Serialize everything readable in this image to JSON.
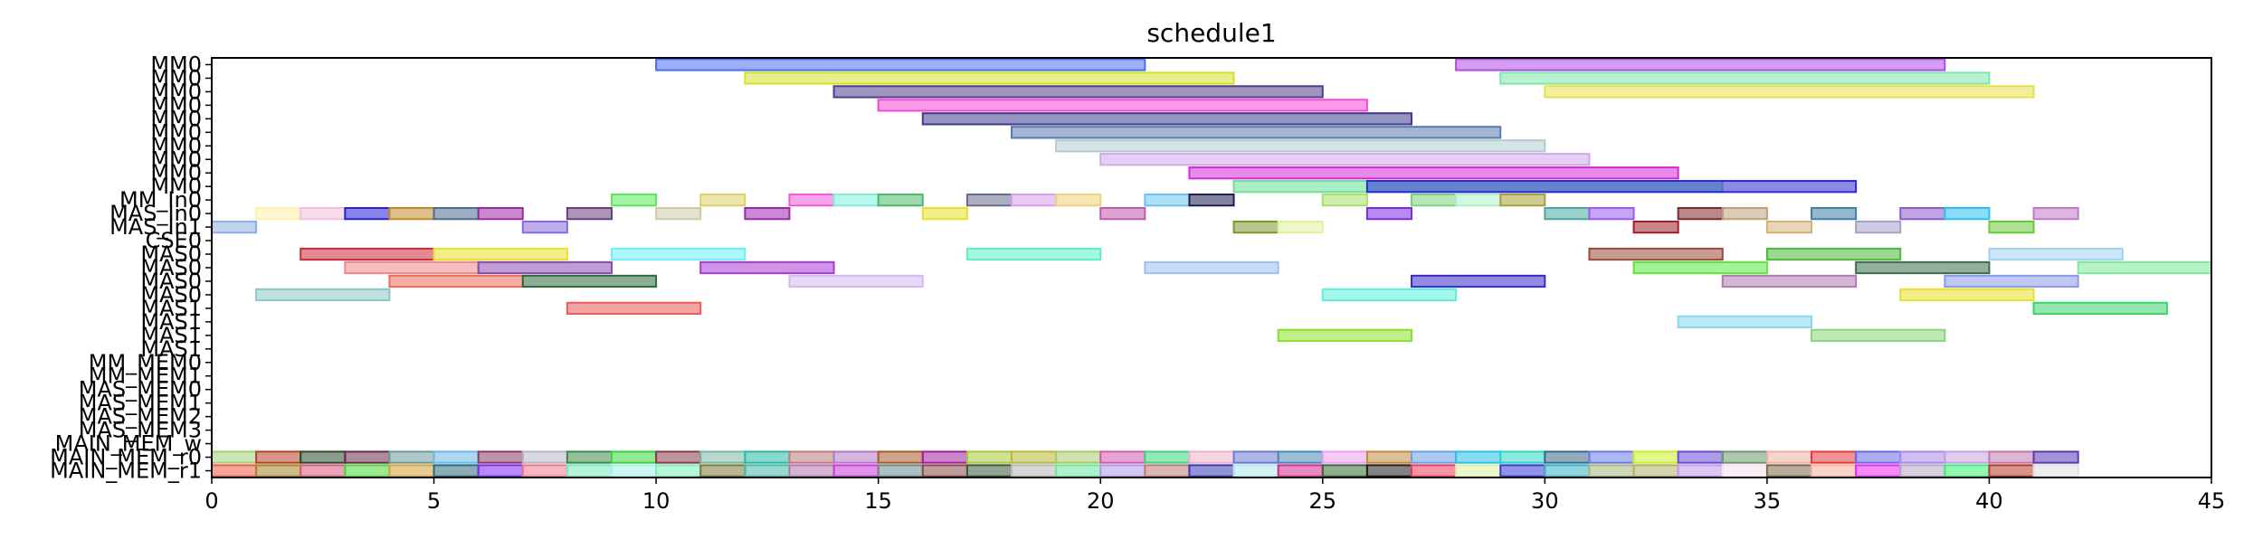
{
  "chart_data": {
    "type": "gantt",
    "title": "schedule1",
    "xlabel": "",
    "ylabel": "",
    "xlim": [
      0,
      45
    ],
    "x_ticks": [
      0,
      5,
      10,
      15,
      20,
      25,
      30,
      35,
      40,
      45
    ],
    "grid": false,
    "legend": "none",
    "rows": [
      "MM0",
      "MM0",
      "MM0",
      "MM0",
      "MM0",
      "MM0",
      "MM0",
      "MM0",
      "MM0",
      "MM0",
      "MM_In0",
      "MAS_In0",
      "MAS_In1",
      "CSE0",
      "MAS0",
      "MAS0",
      "MAS0",
      "MAS0",
      "MAS1",
      "MAS1",
      "MAS1",
      "MAS1",
      "MM_MEM0",
      "MM_MEM1",
      "MAS_MEM0",
      "MAS_MEM1",
      "MAS_MEM2",
      "MAS_MEM3",
      "MAIN_MEM_w",
      "MAIN_MEM_r0",
      "MAIN_MEM_r1"
    ],
    "tasks": [
      {
        "row": 0,
        "start": 10,
        "end": 21,
        "color": "#4a6cf0"
      },
      {
        "row": 0,
        "start": 28,
        "end": 39,
        "color": "#b04ae8"
      },
      {
        "row": 1,
        "start": 12,
        "end": 23,
        "color": "#d6e02a"
      },
      {
        "row": 1,
        "start": 29,
        "end": 40,
        "color": "#7ee8a8"
      },
      {
        "row": 2,
        "start": 14,
        "end": 25,
        "color": "#4e3e8c"
      },
      {
        "row": 2,
        "start": 30,
        "end": 41,
        "color": "#e8e04a"
      },
      {
        "row": 3,
        "start": 15,
        "end": 26,
        "color": "#f54ad8"
      },
      {
        "row": 4,
        "start": 16,
        "end": 27,
        "color": "#3e3a8c"
      },
      {
        "row": 5,
        "start": 18,
        "end": 29,
        "color": "#5a7ab0"
      },
      {
        "row": 6,
        "start": 19,
        "end": 30,
        "color": "#b0cccc"
      },
      {
        "row": 7,
        "start": 20,
        "end": 31,
        "color": "#d2a8ec"
      },
      {
        "row": 8,
        "start": 22,
        "end": 33,
        "color": "#d42ad6"
      },
      {
        "row": 9,
        "start": 23,
        "end": 34,
        "color": "#6ae098"
      },
      {
        "row": 9,
        "start": 26,
        "end": 37,
        "color": "#2a2ad6"
      },
      {
        "row": 10,
        "start": 9,
        "end": 10,
        "color": "#5ae85a"
      },
      {
        "row": 10,
        "start": 11,
        "end": 12,
        "color": "#dcd06a"
      },
      {
        "row": 10,
        "start": 13,
        "end": 14,
        "color": "#f25ad6"
      },
      {
        "row": 10,
        "start": 14,
        "end": 15,
        "color": "#7ef0d8"
      },
      {
        "row": 10,
        "start": 15,
        "end": 16,
        "color": "#4cb86c"
      },
      {
        "row": 10,
        "start": 17,
        "end": 18,
        "color": "#6a6a8c"
      },
      {
        "row": 10,
        "start": 18,
        "end": 19,
        "color": "#d6a0ec"
      },
      {
        "row": 10,
        "start": 19,
        "end": 20,
        "color": "#ecd27a"
      },
      {
        "row": 10,
        "start": 21,
        "end": 22,
        "color": "#6ac4ec"
      },
      {
        "row": 10,
        "start": 22,
        "end": 23,
        "color": "#1e1e4e"
      },
      {
        "row": 10,
        "start": 25,
        "end": 26,
        "color": "#a8e06a"
      },
      {
        "row": 10,
        "start": 27,
        "end": 28,
        "color": "#7ed07e"
      },
      {
        "row": 10,
        "start": 28,
        "end": 29,
        "color": "#b0f0c8"
      },
      {
        "row": 10,
        "start": 29,
        "end": 30,
        "color": "#a8a03a"
      },
      {
        "row": 11,
        "start": 1,
        "end": 2,
        "color": "#fff0a8"
      },
      {
        "row": 11,
        "start": 2,
        "end": 3,
        "color": "#f0c0e0"
      },
      {
        "row": 11,
        "start": 3,
        "end": 4,
        "color": "#2a1ed6"
      },
      {
        "row": 11,
        "start": 4,
        "end": 5,
        "color": "#c08a2a"
      },
      {
        "row": 11,
        "start": 5,
        "end": 6,
        "color": "#4a6e8c"
      },
      {
        "row": 11,
        "start": 6,
        "end": 7,
        "color": "#9a2aa0"
      },
      {
        "row": 11,
        "start": 8,
        "end": 9,
        "color": "#6a3e7e"
      },
      {
        "row": 11,
        "start": 10,
        "end": 11,
        "color": "#cccca8"
      },
      {
        "row": 11,
        "start": 12,
        "end": 13,
        "color": "#9a2ab0"
      },
      {
        "row": 11,
        "start": 16,
        "end": 17,
        "color": "#e8e02a"
      },
      {
        "row": 11,
        "start": 20,
        "end": 21,
        "color": "#c05ab0"
      },
      {
        "row": 11,
        "start": 26,
        "end": 27,
        "color": "#7a2ae0"
      },
      {
        "row": 11,
        "start": 30,
        "end": 31,
        "color": "#4aa8a0"
      },
      {
        "row": 11,
        "start": 31,
        "end": 32,
        "color": "#9a5af0"
      },
      {
        "row": 11,
        "start": 33,
        "end": 34,
        "color": "#7a2a2a"
      },
      {
        "row": 11,
        "start": 34,
        "end": 35,
        "color": "#c0a07a"
      },
      {
        "row": 11,
        "start": 36,
        "end": 37,
        "color": "#3e7ea8"
      },
      {
        "row": 11,
        "start": 38,
        "end": 39,
        "color": "#8a5ac8"
      },
      {
        "row": 11,
        "start": 39,
        "end": 40,
        "color": "#2ac0f0"
      },
      {
        "row": 11,
        "start": 41,
        "end": 42,
        "color": "#c07ac0"
      },
      {
        "row": 12,
        "start": 0,
        "end": 1,
        "color": "#8ab0e0"
      },
      {
        "row": 12,
        "start": 7,
        "end": 8,
        "color": "#8a6ae0"
      },
      {
        "row": 12,
        "start": 23,
        "end": 24,
        "color": "#7a9a2a"
      },
      {
        "row": 12,
        "start": 24,
        "end": 25,
        "color": "#e0f0a0"
      },
      {
        "row": 12,
        "start": 32,
        "end": 33,
        "color": "#a01e2a"
      },
      {
        "row": 12,
        "start": 35,
        "end": 36,
        "color": "#d6b07a"
      },
      {
        "row": 12,
        "start": 37,
        "end": 38,
        "color": "#a8a0cc"
      },
      {
        "row": 12,
        "start": 40,
        "end": 41,
        "color": "#6ac83a"
      },
      {
        "row": 14,
        "start": 2,
        "end": 5,
        "color": "#c82a3a"
      },
      {
        "row": 14,
        "start": 5,
        "end": 8,
        "color": "#e8e02a"
      },
      {
        "row": 14,
        "start": 9,
        "end": 12,
        "color": "#6af0f8"
      },
      {
        "row": 14,
        "start": 17,
        "end": 20,
        "color": "#5af0c8"
      },
      {
        "row": 14,
        "start": 31,
        "end": 34,
        "color": "#9a4a3a"
      },
      {
        "row": 14,
        "start": 35,
        "end": 38,
        "color": "#4ab83a"
      },
      {
        "row": 14,
        "start": 40,
        "end": 43,
        "color": "#a0d2f0"
      },
      {
        "row": 15,
        "start": 3,
        "end": 6,
        "color": "#ec8a8a"
      },
      {
        "row": 15,
        "start": 6,
        "end": 9,
        "color": "#8a4ab0"
      },
      {
        "row": 15,
        "start": 11,
        "end": 14,
        "color": "#a83ad6"
      },
      {
        "row": 15,
        "start": 21,
        "end": 24,
        "color": "#9ac0ec"
      },
      {
        "row": 15,
        "start": 32,
        "end": 35,
        "color": "#5ae83a"
      },
      {
        "row": 15,
        "start": 37,
        "end": 40,
        "color": "#3e6e4e"
      },
      {
        "row": 15,
        "start": 42,
        "end": 45,
        "color": "#7ee89a"
      },
      {
        "row": 16,
        "start": 4,
        "end": 7,
        "color": "#ec6a5a"
      },
      {
        "row": 16,
        "start": 7,
        "end": 10,
        "color": "#2a6a3a"
      },
      {
        "row": 16,
        "start": 13,
        "end": 16,
        "color": "#d6b8f0"
      },
      {
        "row": 16,
        "start": 27,
        "end": 30,
        "color": "#3a2ac8"
      },
      {
        "row": 16,
        "start": 34,
        "end": 37,
        "color": "#b07ab0"
      },
      {
        "row": 16,
        "start": 39,
        "end": 42,
        "color": "#8a9ae8"
      },
      {
        "row": 17,
        "start": 1,
        "end": 4,
        "color": "#8ac8c8"
      },
      {
        "row": 17,
        "start": 25,
        "end": 28,
        "color": "#5af0d8"
      },
      {
        "row": 17,
        "start": 38,
        "end": 41,
        "color": "#e8e02a"
      },
      {
        "row": 18,
        "start": 8,
        "end": 11,
        "color": "#ec5a5a"
      },
      {
        "row": 18,
        "start": 41,
        "end": 44,
        "color": "#3ad66a"
      },
      {
        "row": 19,
        "start": 33,
        "end": 36,
        "color": "#8ad6f0"
      },
      {
        "row": 20,
        "start": 24,
        "end": 27,
        "color": "#8ae02a"
      },
      {
        "row": 20,
        "start": 36,
        "end": 39,
        "color": "#8ad67a"
      },
      {
        "row": 29,
        "start": 0,
        "end": 1,
        "color": "#a0d27a"
      },
      {
        "row": 29,
        "start": 1,
        "end": 2,
        "color": "#b8402a"
      },
      {
        "row": 29,
        "start": 2,
        "end": 3,
        "color": "#2a4a2a"
      },
      {
        "row": 29,
        "start": 3,
        "end": 4,
        "color": "#6a2a4a"
      },
      {
        "row": 29,
        "start": 4,
        "end": 5,
        "color": "#6a9aa0"
      },
      {
        "row": 29,
        "start": 5,
        "end": 6,
        "color": "#6ab8e8"
      },
      {
        "row": 29,
        "start": 6,
        "end": 7,
        "color": "#8a3a6a"
      },
      {
        "row": 29,
        "start": 7,
        "end": 8,
        "color": "#b8b8c8"
      },
      {
        "row": 29,
        "start": 8,
        "end": 9,
        "color": "#3a8a4a"
      },
      {
        "row": 29,
        "start": 9,
        "end": 10,
        "color": "#3ad63a"
      },
      {
        "row": 29,
        "start": 10,
        "end": 11,
        "color": "#8a3a4a"
      },
      {
        "row": 29,
        "start": 11,
        "end": 12,
        "color": "#7ab8a8"
      },
      {
        "row": 29,
        "start": 12,
        "end": 13,
        "color": "#2ab8a8"
      },
      {
        "row": 29,
        "start": 13,
        "end": 14,
        "color": "#c07a7a"
      },
      {
        "row": 29,
        "start": 14,
        "end": 15,
        "color": "#b07ac8"
      },
      {
        "row": 29,
        "start": 15,
        "end": 16,
        "color": "#a85a2a"
      },
      {
        "row": 29,
        "start": 16,
        "end": 17,
        "color": "#a01ea0"
      },
      {
        "row": 29,
        "start": 17,
        "end": 18,
        "color": "#a8c83a"
      },
      {
        "row": 29,
        "start": 18,
        "end": 19,
        "color": "#b8b83a"
      },
      {
        "row": 29,
        "start": 19,
        "end": 20,
        "color": "#a8c86a"
      },
      {
        "row": 29,
        "start": 20,
        "end": 21,
        "color": "#d25ab0"
      },
      {
        "row": 29,
        "start": 21,
        "end": 22,
        "color": "#3ad680"
      },
      {
        "row": 29,
        "start": 22,
        "end": 23,
        "color": "#f0b0c8"
      },
      {
        "row": 29,
        "start": 23,
        "end": 24,
        "color": "#6a7ad6"
      },
      {
        "row": 29,
        "start": 24,
        "end": 25,
        "color": "#4a8ab8"
      },
      {
        "row": 29,
        "start": 25,
        "end": 26,
        "color": "#f0a0f0"
      },
      {
        "row": 29,
        "start": 26,
        "end": 27,
        "color": "#c08a3a"
      },
      {
        "row": 29,
        "start": 27,
        "end": 28,
        "color": "#6aa0e8"
      },
      {
        "row": 29,
        "start": 28,
        "end": 29,
        "color": "#2ac0e8"
      },
      {
        "row": 29,
        "start": 29,
        "end": 30,
        "color": "#2ad6c0"
      },
      {
        "row": 29,
        "start": 30,
        "end": 31,
        "color": "#3a6a8a"
      },
      {
        "row": 29,
        "start": 31,
        "end": 32,
        "color": "#6a7ae8"
      },
      {
        "row": 29,
        "start": 32,
        "end": 33,
        "color": "#c8f02a"
      },
      {
        "row": 29,
        "start": 33,
        "end": 34,
        "color": "#6a4ad6"
      },
      {
        "row": 29,
        "start": 34,
        "end": 35,
        "color": "#6a9a6a"
      },
      {
        "row": 29,
        "start": 35,
        "end": 36,
        "color": "#f0b0a0"
      },
      {
        "row": 29,
        "start": 36,
        "end": 37,
        "color": "#e83a3a"
      },
      {
        "row": 29,
        "start": 37,
        "end": 38,
        "color": "#6a6ae8"
      },
      {
        "row": 29,
        "start": 38,
        "end": 39,
        "color": "#a88ae8"
      },
      {
        "row": 29,
        "start": 39,
        "end": 40,
        "color": "#c8a0e0"
      },
      {
        "row": 29,
        "start": 40,
        "end": 41,
        "color": "#c07ab0"
      },
      {
        "row": 29,
        "start": 41,
        "end": 42,
        "color": "#5a3ab0"
      },
      {
        "row": 30,
        "start": 0,
        "end": 1,
        "color": "#f05a4a"
      },
      {
        "row": 30,
        "start": 1,
        "end": 2,
        "color": "#a8842a"
      },
      {
        "row": 30,
        "start": 2,
        "end": 3,
        "color": "#d65a7a"
      },
      {
        "row": 30,
        "start": 3,
        "end": 4,
        "color": "#4ad63a"
      },
      {
        "row": 30,
        "start": 4,
        "end": 5,
        "color": "#d6a03a"
      },
      {
        "row": 30,
        "start": 5,
        "end": 6,
        "color": "#2a6a7a"
      },
      {
        "row": 30,
        "start": 6,
        "end": 7,
        "color": "#7a2af0"
      },
      {
        "row": 30,
        "start": 7,
        "end": 8,
        "color": "#f07a8a"
      },
      {
        "row": 30,
        "start": 8,
        "end": 9,
        "color": "#7ae8c0"
      },
      {
        "row": 30,
        "start": 9,
        "end": 10,
        "color": "#a8f0e8"
      },
      {
        "row": 30,
        "start": 10,
        "end": 11,
        "color": "#7af0b8"
      },
      {
        "row": 30,
        "start": 11,
        "end": 12,
        "color": "#7a7a3a"
      },
      {
        "row": 30,
        "start": 12,
        "end": 13,
        "color": "#4ab8a8"
      },
      {
        "row": 30,
        "start": 13,
        "end": 14,
        "color": "#b07ab0"
      },
      {
        "row": 30,
        "start": 14,
        "end": 15,
        "color": "#c83ad6"
      },
      {
        "row": 30,
        "start": 15,
        "end": 16,
        "color": "#6a8a8a"
      },
      {
        "row": 30,
        "start": 16,
        "end": 17,
        "color": "#8a4a4a"
      },
      {
        "row": 30,
        "start": 17,
        "end": 18,
        "color": "#3a5a3a"
      },
      {
        "row": 30,
        "start": 18,
        "end": 19,
        "color": "#b8b8b8"
      },
      {
        "row": 30,
        "start": 19,
        "end": 20,
        "color": "#6ae8a0"
      },
      {
        "row": 30,
        "start": 20,
        "end": 21,
        "color": "#b09ae8"
      },
      {
        "row": 30,
        "start": 21,
        "end": 22,
        "color": "#c07a7a"
      },
      {
        "row": 30,
        "start": 22,
        "end": 23,
        "color": "#3a3ab8"
      },
      {
        "row": 30,
        "start": 23,
        "end": 24,
        "color": "#b0e8e8"
      },
      {
        "row": 30,
        "start": 24,
        "end": 25,
        "color": "#d62a8a"
      },
      {
        "row": 30,
        "start": 25,
        "end": 26,
        "color": "#3a6a3a"
      },
      {
        "row": 30,
        "start": 26,
        "end": 27,
        "color": "#1e1e1e"
      },
      {
        "row": 30,
        "start": 27,
        "end": 28,
        "color": "#f03a5a"
      },
      {
        "row": 30,
        "start": 28,
        "end": 29,
        "color": "#e0f0a0"
      },
      {
        "row": 30,
        "start": 29,
        "end": 30,
        "color": "#3a3ad6"
      },
      {
        "row": 30,
        "start": 30,
        "end": 31,
        "color": "#3ab0c8"
      },
      {
        "row": 30,
        "start": 31,
        "end": 32,
        "color": "#a8b87a"
      },
      {
        "row": 30,
        "start": 32,
        "end": 33,
        "color": "#b0b06a"
      },
      {
        "row": 30,
        "start": 33,
        "end": 34,
        "color": "#c09ae8"
      },
      {
        "row": 30,
        "start": 34,
        "end": 35,
        "color": "#f8e0f0"
      },
      {
        "row": 30,
        "start": 35,
        "end": 36,
        "color": "#7a6a4a"
      },
      {
        "row": 30,
        "start": 36,
        "end": 37,
        "color": "#f8b0a0"
      },
      {
        "row": 30,
        "start": 37,
        "end": 38,
        "color": "#e82af0"
      },
      {
        "row": 30,
        "start": 38,
        "end": 39,
        "color": "#b8a8c8"
      },
      {
        "row": 30,
        "start": 39,
        "end": 40,
        "color": "#3af07a"
      },
      {
        "row": 30,
        "start": 40,
        "end": 41,
        "color": "#b83a2a"
      },
      {
        "row": 30,
        "start": 41,
        "end": 42,
        "color": "#e0e0e0"
      }
    ]
  }
}
